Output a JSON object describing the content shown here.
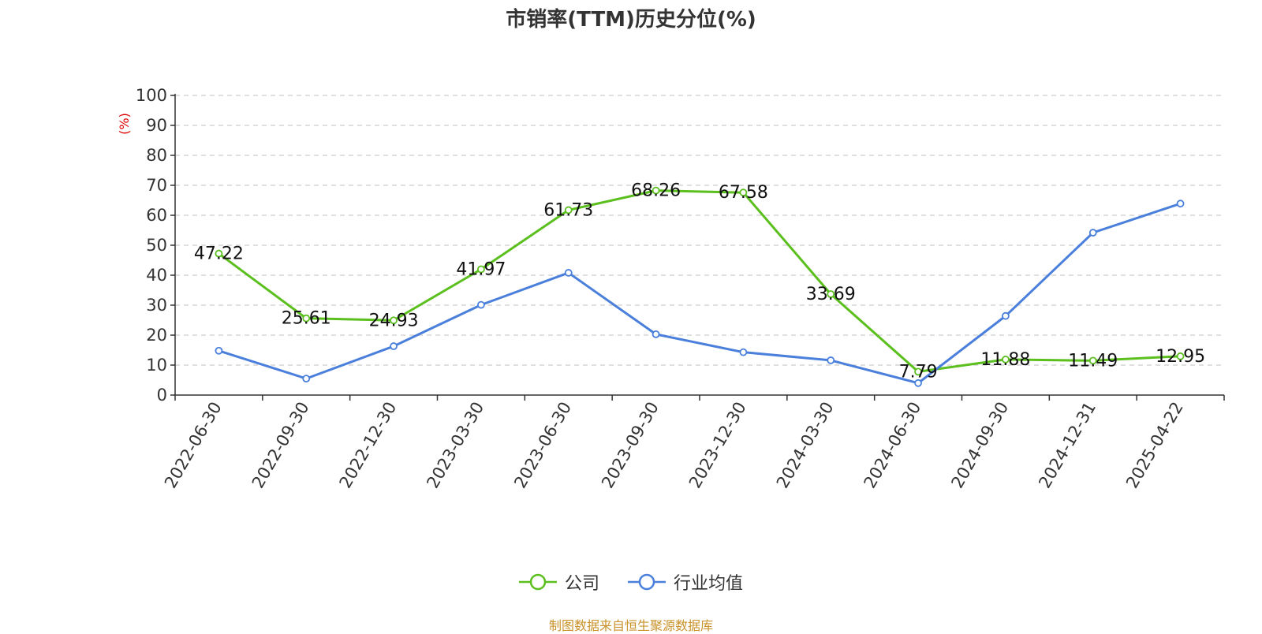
{
  "chart_data": {
    "type": "line",
    "title": "市销率(TTM)历史分位(%)",
    "ylabel": "(%)",
    "xlabel": "",
    "ylim": [
      0,
      100
    ],
    "yticks": [
      0,
      10,
      20,
      30,
      40,
      50,
      60,
      70,
      80,
      90,
      100
    ],
    "grid": true,
    "legend_position": "bottom",
    "categories": [
      "2022-06-30",
      "2022-09-30",
      "2022-12-30",
      "2023-03-30",
      "2023-06-30",
      "2023-09-30",
      "2023-12-30",
      "2024-03-30",
      "2024-06-30",
      "2024-09-30",
      "2024-12-31",
      "2025-04-22"
    ],
    "series": [
      {
        "name": "公司",
        "color": "#5bbf1e",
        "show_labels": true,
        "values": [
          47.22,
          25.61,
          24.93,
          41.97,
          61.73,
          68.26,
          67.58,
          33.69,
          7.79,
          11.88,
          11.49,
          12.95
        ]
      },
      {
        "name": "行业均值",
        "color": "#4a7fdb",
        "show_labels": false,
        "values": [
          14.8,
          5.5,
          16.3,
          30.1,
          40.8,
          20.3,
          14.3,
          11.6,
          4.0,
          26.4,
          54.2,
          63.9
        ]
      }
    ]
  },
  "source_note": "制图数据来自恒生聚源数据库",
  "colors": {
    "axis": "#333333",
    "grid": "#cccccc",
    "ylabel": "#e00000",
    "source": "#c9922a"
  }
}
